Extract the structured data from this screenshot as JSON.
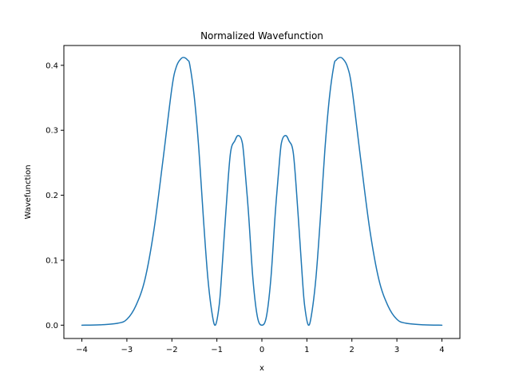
{
  "chart_data": {
    "type": "line",
    "title": "Normalized Wavefunction",
    "xlabel": "x",
    "ylabel": "Wavefunction",
    "xlim": [
      -4.4,
      4.4
    ],
    "ylim": [
      -0.0205,
      0.4305
    ],
    "xticks": [
      -4,
      -3,
      -2,
      -1,
      0,
      1,
      2,
      3,
      4
    ],
    "xtick_labels": [
      "−4",
      "−3",
      "−2",
      "−1",
      "0",
      "1",
      "2",
      "3",
      "4"
    ],
    "yticks": [
      0.0,
      0.1,
      0.2,
      0.3,
      0.4
    ],
    "ytick_labels": [
      "0.0",
      "0.1",
      "0.2",
      "0.3",
      "0.4"
    ],
    "grid": false,
    "legend": "none",
    "series": [
      {
        "color": "#1f77b4",
        "x": [
          -4.0,
          -3.6,
          -3.2,
          -3.0,
          -2.8,
          -2.6,
          -2.4,
          -2.2,
          -2.0,
          -1.9,
          -1.8,
          -1.73,
          -1.65,
          -1.6,
          -1.5,
          -1.4,
          -1.3,
          -1.2,
          -1.1,
          -1.03,
          -0.95,
          -0.9,
          -0.8,
          -0.7,
          -0.6,
          -0.53,
          -0.45,
          -0.4,
          -0.3,
          -0.2,
          -0.1,
          0.0,
          0.1,
          0.2,
          0.3,
          0.4,
          0.45,
          0.53,
          0.6,
          0.7,
          0.8,
          0.9,
          0.95,
          1.03,
          1.1,
          1.2,
          1.3,
          1.4,
          1.5,
          1.6,
          1.65,
          1.73,
          1.8,
          1.9,
          2.0,
          2.2,
          2.4,
          2.6,
          2.8,
          3.0,
          3.2,
          3.6,
          4.0
        ],
        "y": [
          0.0,
          0.0005,
          0.003,
          0.009,
          0.03,
          0.07,
          0.146,
          0.253,
          0.365,
          0.398,
          0.41,
          0.412,
          0.408,
          0.4,
          0.35,
          0.27,
          0.165,
          0.072,
          0.015,
          0.0005,
          0.03,
          0.072,
          0.175,
          0.264,
          0.284,
          0.292,
          0.285,
          0.26,
          0.175,
          0.072,
          0.013,
          0.0,
          0.013,
          0.072,
          0.175,
          0.26,
          0.285,
          0.292,
          0.284,
          0.264,
          0.175,
          0.072,
          0.03,
          0.0005,
          0.015,
          0.072,
          0.165,
          0.27,
          0.35,
          0.4,
          0.408,
          0.412,
          0.41,
          0.398,
          0.365,
          0.253,
          0.146,
          0.07,
          0.03,
          0.009,
          0.003,
          0.0005,
          0.0
        ]
      }
    ]
  }
}
